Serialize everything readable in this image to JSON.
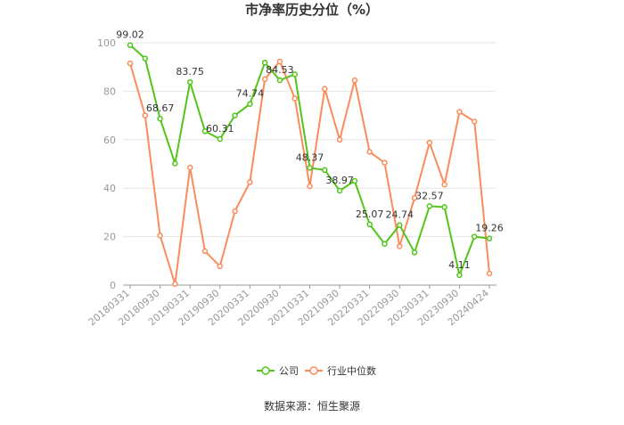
{
  "chart_data": {
    "type": "line",
    "title": "市净率历史分位（%）",
    "source": "数据来源：恒生聚源",
    "ylim": [
      0,
      100
    ],
    "yticks": [
      0,
      20,
      40,
      60,
      80,
      100
    ],
    "grid": true,
    "legend_position": "bottom",
    "x_tick_labels": [
      "20180331",
      "20180930",
      "20190331",
      "20190930",
      "20200331",
      "20200930",
      "20210331",
      "20210930",
      "20220331",
      "20220930",
      "20230331",
      "20230930",
      "20240424"
    ],
    "x": [
      "20180331",
      "20180630",
      "20180930",
      "20181231",
      "20190331",
      "20190630",
      "20190930",
      "20191231",
      "20200331",
      "20200630",
      "20200930",
      "20201231",
      "20210331",
      "20210630",
      "20210930",
      "20211231",
      "20220331",
      "20220630",
      "20220930",
      "20221231",
      "20230331",
      "20230630",
      "20230930",
      "20231231",
      "20240424"
    ],
    "series": [
      {
        "name": "公司",
        "color": "#52c41a",
        "values": [
          99.02,
          93.5,
          68.67,
          50.2,
          83.75,
          63.5,
          60.31,
          70.0,
          74.74,
          91.8,
          84.53,
          87.0,
          48.37,
          47.5,
          38.97,
          43.0,
          25.07,
          17.0,
          24.74,
          13.5,
          32.57,
          32.2,
          4.11,
          20.0,
          19.26
        ],
        "labels": [
          "99.02",
          "",
          "68.67",
          "",
          "83.75",
          "",
          "60.31",
          "",
          "74.74",
          "",
          "84.53",
          "",
          "48.37",
          "",
          "38.97",
          "",
          "25.07",
          "",
          "24.74",
          "",
          "32.57",
          "",
          "4.11",
          "",
          "19.26"
        ]
      },
      {
        "name": "行业中位数",
        "color": "#fa8c5c",
        "values": [
          91.5,
          70.0,
          20.5,
          0.5,
          48.5,
          14.0,
          7.8,
          30.5,
          42.5,
          85.0,
          92.3,
          77.0,
          40.8,
          81.0,
          60.0,
          84.5,
          55.0,
          50.5,
          16.0,
          36.0,
          58.8,
          41.5,
          71.5,
          67.5,
          4.8
        ],
        "labels": []
      }
    ]
  }
}
